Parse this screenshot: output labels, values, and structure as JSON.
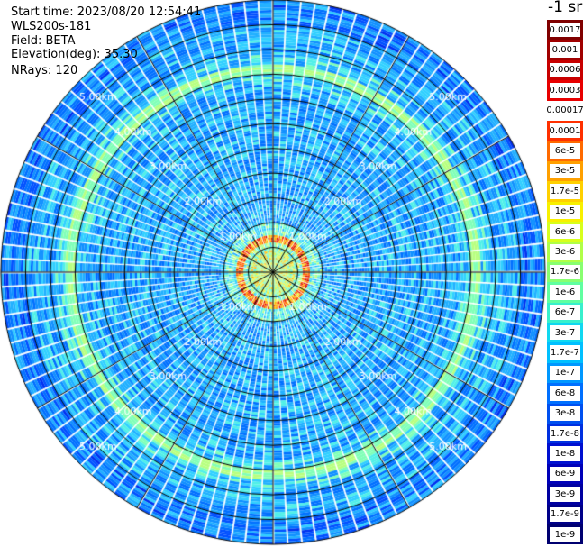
{
  "info": {
    "start_time": "Start time: 2023/08/20 12:54:41",
    "device": "WLS200s-181",
    "field": "Field: BETA",
    "elevation": "Elevation(deg): 35.30",
    "nrays": "NRays: 120"
  },
  "unit_title": "-1 sr",
  "chart_data": {
    "type": "heatmap",
    "projection": "polar (PPI scan)",
    "center_range_km": 0,
    "max_range_km": 5.5,
    "n_rays": 120,
    "range_ring_labels": [
      "1.00km",
      "2.00km",
      "3.00km",
      "4.00km",
      "5.00km"
    ],
    "range_ring_values_km": [
      1,
      2,
      3,
      4,
      5
    ],
    "extra_rings_km": [
      0.5,
      1.5,
      2.5,
      3.5,
      4.5,
      5.5
    ],
    "spokes_deg": [
      0,
      30,
      60,
      90,
      120,
      150,
      180,
      210,
      240,
      270,
      300,
      330
    ],
    "features": [
      {
        "name": "near-range high-backscatter ring",
        "range_km": 0.6,
        "level_label": "1e-4"
      },
      {
        "name": "outer aerosol ring",
        "range_km": 4.1,
        "level_label": "1.7e-7"
      }
    ],
    "colorbar": {
      "labels": [
        "0.0017",
        "0.001",
        "0.0006",
        "0.0003",
        "0.00017",
        "0.0001",
        "6e-5",
        "3e-5",
        "1.7e-5",
        "1e-5",
        "6e-6",
        "3e-6",
        "1.7e-6",
        "1e-6",
        "6e-7",
        "3e-7",
        "1.7e-7",
        "1e-7",
        "6e-8",
        "3e-8",
        "1.7e-8",
        "1e-8",
        "6e-9",
        "3e-9",
        "1.7e-9",
        "1e-9"
      ],
      "colors": [
        "#800000",
        "#a00000",
        "#c80000",
        "#e80000",
        "#ffffff",
        "#ff3000",
        "#ff6a00",
        "#ffa000",
        "#ffd000",
        "#f8f000",
        "#d8ff1c",
        "#b0ff48",
        "#88ff70",
        "#60ffa0",
        "#38f0cc",
        "#10d8f0",
        "#00c0ff",
        "#0098ff",
        "#0070ff",
        "#0050f0",
        "#0030e0",
        "#0010d0",
        "#0000b8",
        "#0000a0",
        "#000088",
        "#000070"
      ]
    }
  }
}
